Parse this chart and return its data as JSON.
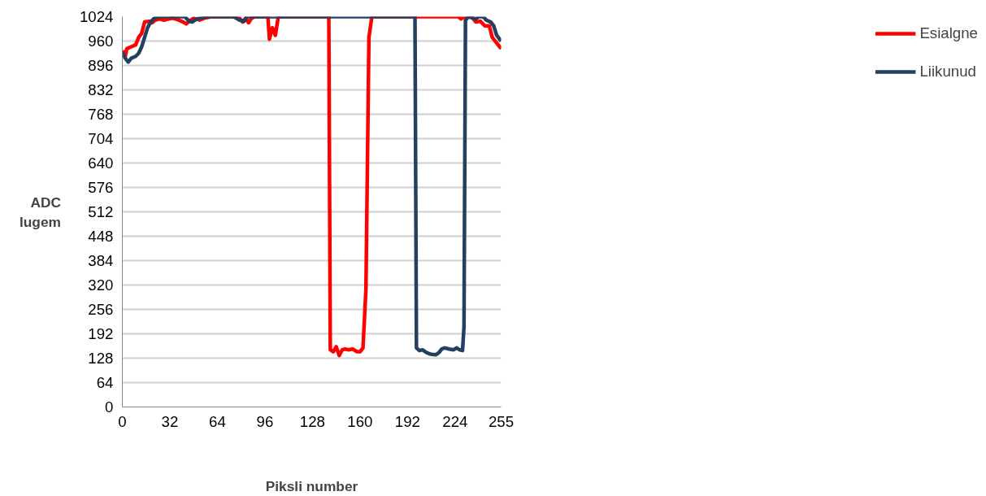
{
  "chart_data": {
    "type": "line",
    "xlabel": "Piksli number",
    "ylabel": "ADC lugem",
    "xlim": [
      0,
      255
    ],
    "ylim": [
      0,
      1024
    ],
    "xticks": [
      0,
      32,
      64,
      96,
      128,
      160,
      192,
      224,
      255
    ],
    "yticks": [
      0,
      64,
      128,
      192,
      256,
      320,
      384,
      448,
      512,
      576,
      640,
      704,
      768,
      832,
      896,
      960,
      1024
    ],
    "grid": "y",
    "legend": "right",
    "marker": "none",
    "line_style": "solid",
    "series": [
      {
        "name": "Esialgne",
        "color": "#ff0000",
        "x": [
          0,
          2,
          3,
          6,
          9,
          11,
          13,
          15,
          18,
          20,
          22,
          25,
          28,
          31,
          34,
          38,
          41,
          43,
          45,
          48,
          52,
          55,
          60,
          78,
          81,
          83,
          85,
          87,
          89,
          98,
          99,
          101,
          103,
          105,
          139,
          140,
          142,
          144,
          146,
          148,
          150,
          152,
          155,
          158,
          160,
          162,
          164,
          166,
          168,
          226,
          228,
          230,
          235,
          238,
          241,
          244,
          247,
          249,
          252,
          255
        ],
        "values": [
          935,
          920,
          940,
          945,
          950,
          970,
          980,
          1010,
          1012,
          1008,
          1015,
          1018,
          1015,
          1018,
          1020,
          1015,
          1010,
          1005,
          1012,
          1020,
          1015,
          1020,
          1024,
          1024,
          1010,
          1020,
          1008,
          1020,
          1024,
          1024,
          965,
          995,
          975,
          1024,
          1024,
          150,
          145,
          158,
          135,
          150,
          152,
          150,
          152,
          145,
          145,
          155,
          310,
          970,
          1024,
          1024,
          1018,
          1024,
          1024,
          1010,
          1012,
          1000,
          1000,
          970,
          955,
          940
        ]
      },
      {
        "name": "Liikunud",
        "color": "#243f60",
        "x": [
          0,
          2,
          4,
          6,
          9,
          11,
          13,
          15,
          17,
          19,
          21,
          24,
          42,
          45,
          47,
          50,
          54,
          57,
          75,
          79,
          82,
          84,
          197,
          198,
          200,
          202,
          205,
          208,
          211,
          213,
          215,
          217,
          220,
          223,
          225,
          227,
          229,
          230,
          231,
          233,
          238,
          240,
          243,
          245,
          248,
          250,
          252,
          255
        ],
        "values": [
          930,
          915,
          905,
          915,
          920,
          928,
          945,
          970,
          995,
          1010,
          1018,
          1024,
          1024,
          1012,
          1010,
          1018,
          1022,
          1024,
          1024,
          1015,
          1012,
          1024,
          1024,
          155,
          148,
          150,
          142,
          138,
          137,
          142,
          152,
          155,
          152,
          150,
          155,
          150,
          148,
          210,
          1015,
          1024,
          1018,
          1024,
          1024,
          1015,
          1010,
          1000,
          975,
          960
        ]
      }
    ]
  }
}
